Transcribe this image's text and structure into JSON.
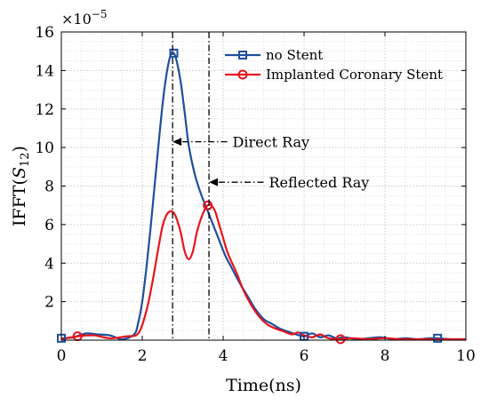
{
  "chart_data": {
    "type": "line",
    "xlabel": "Time(ns)",
    "ylabel_prefix": "IFFT(",
    "ylabel_var": "S",
    "ylabel_sub": "12",
    "ylabel_suffix": ")",
    "y_exponent_base": "×10",
    "y_exponent": "−5",
    "xlim": [
      0,
      10
    ],
    "ylim": [
      0,
      16
    ],
    "xticks": [
      0,
      2,
      4,
      6,
      8,
      10
    ],
    "yticks": [
      2,
      4,
      6,
      8,
      10,
      12,
      14,
      16
    ],
    "grid": true,
    "legend_position": "top-right",
    "series": [
      {
        "name": "no Stent",
        "color": "#1f4e9c",
        "marker": "square",
        "x": [
          0,
          0.3,
          0.6,
          0.9,
          1.2,
          1.5,
          1.8,
          1.9,
          2.0,
          2.1,
          2.2,
          2.3,
          2.4,
          2.5,
          2.6,
          2.7,
          2.78,
          2.85,
          2.95,
          3.05,
          3.15,
          3.3,
          3.45,
          3.6,
          3.75,
          3.9,
          4.05,
          4.2,
          4.4,
          4.6,
          4.8,
          5.0,
          5.2,
          5.4,
          5.6,
          5.8,
          6.0,
          6.2,
          6.4,
          6.6,
          6.8,
          7.0,
          7.3,
          7.6,
          7.9,
          8.2,
          8.5,
          8.8,
          9.1,
          9.3,
          9.6,
          10.0
        ],
        "values": [
          0.1,
          0.15,
          0.35,
          0.3,
          0.25,
          0.05,
          0.3,
          0.9,
          2.0,
          3.7,
          5.7,
          7.9,
          10.1,
          12.2,
          13.8,
          14.8,
          14.9,
          14.5,
          13.4,
          11.8,
          10.1,
          8.6,
          7.6,
          6.8,
          6.0,
          5.2,
          4.4,
          3.8,
          3.0,
          2.3,
          1.6,
          1.1,
          0.85,
          0.6,
          0.45,
          0.3,
          0.2,
          0.35,
          0.15,
          0.25,
          0.1,
          0.15,
          0.05,
          0.1,
          0.15,
          0.05,
          0.1,
          0.05,
          0.1,
          0.1,
          0.05,
          0.05
        ]
      },
      {
        "name": "Implanted Coronary Stent",
        "color": "#e8141c",
        "marker": "circle",
        "x": [
          0,
          0.4,
          0.8,
          1.2,
          1.6,
          1.9,
          2.1,
          2.25,
          2.4,
          2.5,
          2.6,
          2.7,
          2.78,
          2.85,
          2.95,
          3.05,
          3.15,
          3.25,
          3.35,
          3.45,
          3.55,
          3.62,
          3.7,
          3.8,
          3.9,
          4.0,
          4.1,
          4.2,
          4.35,
          4.5,
          4.7,
          4.9,
          5.1,
          5.3,
          5.5,
          5.7,
          5.85,
          6.0,
          6.2,
          6.4,
          6.6,
          6.9,
          7.2,
          7.6,
          8.0,
          8.4,
          8.8,
          9.2,
          9.6,
          10.0
        ],
        "values": [
          0.05,
          0.2,
          0.25,
          0.1,
          0.2,
          0.35,
          1.5,
          3.0,
          4.8,
          5.9,
          6.5,
          6.7,
          6.6,
          6.3,
          5.6,
          4.6,
          4.2,
          4.6,
          5.6,
          6.3,
          6.8,
          7.0,
          7.0,
          6.7,
          6.0,
          5.3,
          4.6,
          4.1,
          3.4,
          2.6,
          1.8,
          1.2,
          0.8,
          0.6,
          0.45,
          0.3,
          0.4,
          0.25,
          0.15,
          0.3,
          0.1,
          0.05,
          0.1,
          0.05,
          0.1,
          0.05,
          0.05,
          0.05,
          0.05,
          0.05
        ]
      }
    ],
    "markers": [
      {
        "series": 0,
        "x": [
          0,
          2.78,
          6.0,
          9.3
        ],
        "y": [
          0.1,
          14.9,
          0.2,
          0.1
        ]
      },
      {
        "series": 1,
        "x": [
          0.4,
          3.62,
          6.9
        ],
        "y": [
          0.2,
          7.0,
          0.05
        ]
      }
    ],
    "vlines": [
      2.75,
      3.65
    ],
    "annotations": [
      {
        "label": "Direct Ray",
        "arrow_to_x": 2.75,
        "arrow_from_x": 4.1,
        "y": 10.3
      },
      {
        "label": "Reflected Ray",
        "arrow_to_x": 3.65,
        "arrow_from_x": 5.0,
        "y": 8.2
      }
    ]
  }
}
